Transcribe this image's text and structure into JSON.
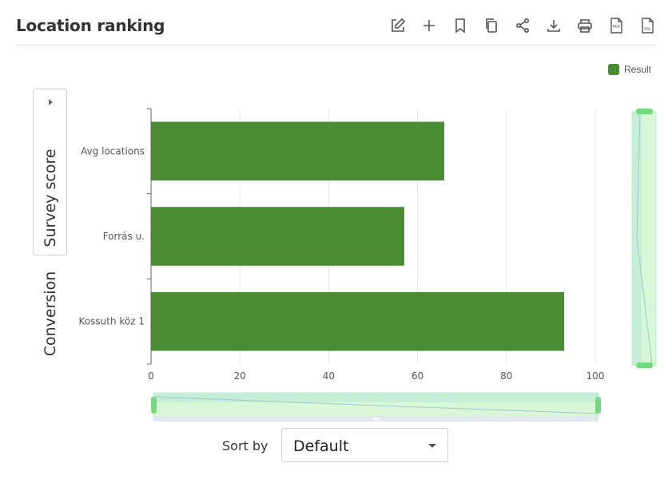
{
  "header": {
    "title": "Location ranking",
    "tools": [
      {
        "name": "edit-icon"
      },
      {
        "name": "plus-icon"
      },
      {
        "name": "bookmark-icon"
      },
      {
        "name": "copy-icon"
      },
      {
        "name": "share-icon"
      },
      {
        "name": "download-icon"
      },
      {
        "name": "print-icon"
      },
      {
        "name": "pdf-icon",
        "text": "PDF"
      },
      {
        "name": "xsl-icon",
        "text": "XSL"
      }
    ]
  },
  "side_tabs": {
    "survey": "Survey score",
    "conversion": "Conversion"
  },
  "legend": {
    "label": "Result",
    "color": "#4a8c34"
  },
  "chart_data": {
    "type": "bar",
    "orientation": "horizontal",
    "categories": [
      "Avg locations",
      "Forrás u.",
      "Kossuth köz 1"
    ],
    "series": [
      {
        "name": "Result",
        "values": [
          66,
          57,
          93
        ],
        "color": "#4a8c34"
      }
    ],
    "xlim": [
      0,
      100
    ],
    "xticks": [
      0,
      20,
      40,
      60,
      80,
      100
    ],
    "grid": true,
    "legend_position": "top-right"
  },
  "sort": {
    "label": "Sort by",
    "value": "Default"
  },
  "colors": {
    "bar": "#4a8c34",
    "zoom_fill": "#d8f7d6",
    "zoom_handle": "#6edb7c"
  }
}
